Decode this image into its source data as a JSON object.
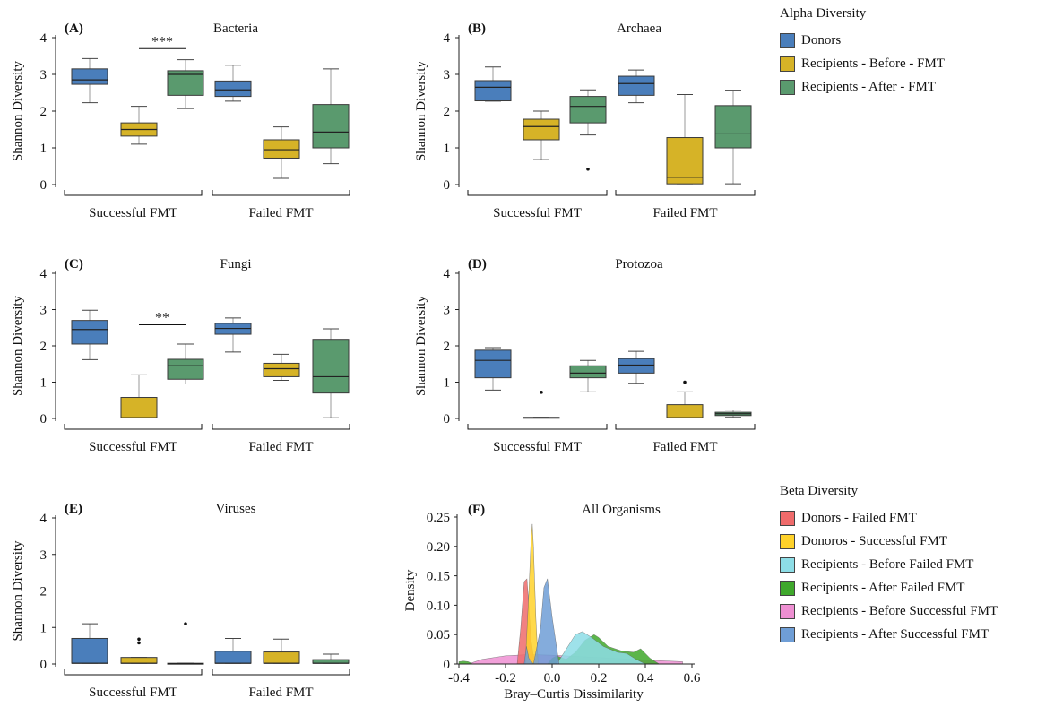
{
  "legend_alpha": {
    "title": "Alpha Diversity",
    "items": [
      {
        "label": "Donors",
        "color": "#4a7ebb"
      },
      {
        "label": "Recipients - Before - FMT",
        "color": "#d6b327"
      },
      {
        "label": "Recipients - After - FMT",
        "color": "#5a9a6e"
      }
    ]
  },
  "legend_beta": {
    "title": "Beta Diversity",
    "items": [
      {
        "label": "Donors - Failed FMT",
        "color": "#ef6b6b"
      },
      {
        "label": "Donoros - Successful FMT",
        "color": "#ffd22a"
      },
      {
        "label": "Recipients - Before Failed FMT",
        "color": "#8ddde6"
      },
      {
        "label": "Recipients - After Failed FMT",
        "color": "#3fa82c"
      },
      {
        "label": "Recipients - Before Successful FMT",
        "color": "#ee8fd2"
      },
      {
        "label": "Recipients - After Successful FMT",
        "color": "#6f9ed6"
      }
    ]
  },
  "chart_data": [
    {
      "type": "box",
      "panel": "(A)",
      "title": "Bacteria",
      "ylabel": "Shannon Diversity",
      "ylim": [
        0,
        4
      ],
      "yticks": [
        "0",
        "1",
        "2",
        "3",
        "4"
      ],
      "groups": [
        "Successful FMT",
        "Failed FMT"
      ],
      "boxes": [
        {
          "group": 0,
          "series": 0,
          "min": 2.23,
          "q1": 2.73,
          "median": 2.85,
          "q3": 3.15,
          "max": 3.43,
          "outliers": []
        },
        {
          "group": 0,
          "series": 1,
          "min": 1.1,
          "q1": 1.32,
          "median": 1.5,
          "q3": 1.68,
          "max": 2.13,
          "outliers": []
        },
        {
          "group": 0,
          "series": 2,
          "min": 2.07,
          "q1": 2.43,
          "median": 3.0,
          "q3": 3.1,
          "max": 3.4,
          "outliers": []
        },
        {
          "group": 1,
          "series": 0,
          "min": 2.27,
          "q1": 2.4,
          "median": 2.58,
          "q3": 2.82,
          "max": 3.25,
          "outliers": []
        },
        {
          "group": 1,
          "series": 1,
          "min": 0.17,
          "q1": 0.72,
          "median": 0.95,
          "q3": 1.22,
          "max": 1.57,
          "outliers": []
        },
        {
          "group": 1,
          "series": 2,
          "min": 0.57,
          "q1": 1.0,
          "median": 1.43,
          "q3": 2.18,
          "max": 3.15,
          "outliers": []
        }
      ],
      "significance": [
        {
          "label": "***",
          "from": 1,
          "to": 2,
          "y": 3.7
        }
      ]
    },
    {
      "type": "box",
      "panel": "(B)",
      "title": "Archaea",
      "ylabel": "Shannon Diversity",
      "ylim": [
        0,
        4
      ],
      "yticks": [
        "0",
        "1",
        "2",
        "3",
        "4"
      ],
      "groups": [
        "Successful FMT",
        "Failed FMT"
      ],
      "boxes": [
        {
          "group": 0,
          "series": 0,
          "min": 2.27,
          "q1": 2.28,
          "median": 2.65,
          "q3": 2.83,
          "max": 3.2,
          "outliers": []
        },
        {
          "group": 0,
          "series": 1,
          "min": 0.68,
          "q1": 1.22,
          "median": 1.58,
          "q3": 1.78,
          "max": 2.0,
          "outliers": []
        },
        {
          "group": 0,
          "series": 2,
          "min": 1.35,
          "q1": 1.68,
          "median": 2.13,
          "q3": 2.4,
          "max": 2.58,
          "outliers": [
            0.42
          ]
        },
        {
          "group": 1,
          "series": 0,
          "min": 2.23,
          "q1": 2.43,
          "median": 2.75,
          "q3": 2.95,
          "max": 3.12,
          "outliers": []
        },
        {
          "group": 1,
          "series": 1,
          "min": 0.02,
          "q1": 0.02,
          "median": 0.2,
          "q3": 1.28,
          "max": 2.45,
          "outliers": []
        },
        {
          "group": 1,
          "series": 2,
          "min": 0.02,
          "q1": 1.0,
          "median": 1.38,
          "q3": 2.15,
          "max": 2.57,
          "outliers": []
        }
      ],
      "significance": []
    },
    {
      "type": "box",
      "panel": "(C)",
      "title": "Fungi",
      "ylabel": "Shannon Diversity",
      "ylim": [
        0,
        4
      ],
      "yticks": [
        "0",
        "1",
        "2",
        "3",
        "4"
      ],
      "groups": [
        "Successful FMT",
        "Failed FMT"
      ],
      "boxes": [
        {
          "group": 0,
          "series": 0,
          "min": 1.62,
          "q1": 2.05,
          "median": 2.45,
          "q3": 2.7,
          "max": 2.98,
          "outliers": []
        },
        {
          "group": 0,
          "series": 1,
          "min": 0.02,
          "q1": 0.02,
          "median": 0.02,
          "q3": 0.58,
          "max": 1.2,
          "outliers": []
        },
        {
          "group": 0,
          "series": 2,
          "min": 0.95,
          "q1": 1.08,
          "median": 1.45,
          "q3": 1.63,
          "max": 2.05,
          "outliers": []
        },
        {
          "group": 1,
          "series": 0,
          "min": 1.83,
          "q1": 2.32,
          "median": 2.48,
          "q3": 2.62,
          "max": 2.77,
          "outliers": []
        },
        {
          "group": 1,
          "series": 1,
          "min": 1.05,
          "q1": 1.15,
          "median": 1.37,
          "q3": 1.52,
          "max": 1.77,
          "outliers": []
        },
        {
          "group": 1,
          "series": 2,
          "min": 0.02,
          "q1": 0.7,
          "median": 1.15,
          "q3": 2.18,
          "max": 2.47,
          "outliers": []
        }
      ],
      "significance": [
        {
          "label": "**",
          "from": 1,
          "to": 2,
          "y": 2.58
        }
      ]
    },
    {
      "type": "box",
      "panel": "(D)",
      "title": "Protozoa",
      "ylabel": "Shannon Diversity",
      "ylim": [
        0,
        4
      ],
      "yticks": [
        "0",
        "1",
        "2",
        "3",
        "4"
      ],
      "groups": [
        "Successful FMT",
        "Failed FMT"
      ],
      "boxes": [
        {
          "group": 0,
          "series": 0,
          "min": 0.78,
          "q1": 1.12,
          "median": 1.6,
          "q3": 1.88,
          "max": 1.95,
          "outliers": []
        },
        {
          "group": 0,
          "series": 1,
          "min": 0.02,
          "q1": 0.02,
          "median": 0.02,
          "q3": 0.03,
          "max": 0.03,
          "outliers": [
            0.72
          ]
        },
        {
          "group": 0,
          "series": 2,
          "min": 0.73,
          "q1": 1.12,
          "median": 1.25,
          "q3": 1.45,
          "max": 1.6,
          "outliers": []
        },
        {
          "group": 1,
          "series": 0,
          "min": 0.97,
          "q1": 1.25,
          "median": 1.47,
          "q3": 1.65,
          "max": 1.85,
          "outliers": []
        },
        {
          "group": 1,
          "series": 1,
          "min": 0.02,
          "q1": 0.02,
          "median": 0.02,
          "q3": 0.38,
          "max": 0.73,
          "outliers": [
            1.0
          ]
        },
        {
          "group": 1,
          "series": 2,
          "min": 0.03,
          "q1": 0.08,
          "median": 0.13,
          "q3": 0.17,
          "max": 0.23,
          "outliers": []
        }
      ],
      "significance": []
    },
    {
      "type": "box",
      "panel": "(E)",
      "title": "Viruses",
      "ylabel": "Shannon Diversity",
      "ylim": [
        0,
        4
      ],
      "yticks": [
        "0",
        "1",
        "2",
        "3",
        "4"
      ],
      "groups": [
        "Successful FMT",
        "Failed FMT"
      ],
      "boxes": [
        {
          "group": 0,
          "series": 0,
          "min": 0.02,
          "q1": 0.02,
          "median": 0.02,
          "q3": 0.7,
          "max": 1.1,
          "outliers": []
        },
        {
          "group": 0,
          "series": 1,
          "min": 0.02,
          "q1": 0.02,
          "median": 0.02,
          "q3": 0.18,
          "max": 0.18,
          "outliers": [
            0.58,
            0.68
          ]
        },
        {
          "group": 0,
          "series": 2,
          "min": 0.01,
          "q1": 0.01,
          "median": 0.01,
          "q3": 0.02,
          "max": 0.02,
          "outliers": [
            1.1
          ]
        },
        {
          "group": 1,
          "series": 0,
          "min": 0.02,
          "q1": 0.02,
          "median": 0.02,
          "q3": 0.35,
          "max": 0.7,
          "outliers": []
        },
        {
          "group": 1,
          "series": 1,
          "min": 0.02,
          "q1": 0.02,
          "median": 0.02,
          "q3": 0.33,
          "max": 0.68,
          "outliers": []
        },
        {
          "group": 1,
          "series": 2,
          "min": 0.02,
          "q1": 0.02,
          "median": 0.02,
          "q3": 0.12,
          "max": 0.27,
          "outliers": []
        }
      ],
      "significance": []
    },
    {
      "type": "area",
      "panel": "(F)",
      "title": "All Organisms",
      "xlabel": "Bray–Curtis Dissimilarity",
      "ylabel": "Density",
      "xlim": [
        -0.4,
        0.6
      ],
      "ylim": [
        0,
        0.25
      ],
      "xticks": [
        "-0.4",
        "-0.2",
        "0.0",
        "0.2",
        "0.4",
        "0.6"
      ],
      "yticks": [
        "0",
        "0.05",
        "0.10",
        "0.15",
        "0.20",
        "0.25"
      ],
      "series": [
        {
          "color": "#ee8fd2",
          "x": [
            -0.36,
            -0.3,
            -0.2,
            -0.1,
            0.0,
            0.1,
            0.2,
            0.3,
            0.4,
            0.5,
            0.56
          ],
          "y": [
            0.0,
            0.008,
            0.014,
            0.016,
            0.015,
            0.013,
            0.011,
            0.009,
            0.007,
            0.005,
            0.004
          ]
        },
        {
          "color": "#3fa82c",
          "x": [
            -0.4,
            -0.38,
            -0.36,
            -0.34,
            -0.02,
            0.0,
            0.02,
            0.06,
            0.1,
            0.14,
            0.18,
            0.2,
            0.24,
            0.3,
            0.35,
            0.38,
            0.42,
            0.46
          ],
          "y": [
            0.004,
            0.005,
            0.004,
            0.0,
            0.0,
            0.01,
            0.014,
            0.008,
            0.02,
            0.04,
            0.05,
            0.045,
            0.03,
            0.022,
            0.02,
            0.026,
            0.01,
            0.0
          ]
        },
        {
          "color": "#8ddde6",
          "x": [
            0.02,
            0.06,
            0.1,
            0.13,
            0.17,
            0.22,
            0.28,
            0.32,
            0.36,
            0.4
          ],
          "y": [
            0.0,
            0.025,
            0.05,
            0.055,
            0.045,
            0.03,
            0.02,
            0.018,
            0.008,
            0.0
          ]
        },
        {
          "color": "#ef6b6b",
          "x": [
            -0.15,
            -0.135,
            -0.12,
            -0.108,
            -0.1,
            -0.09,
            -0.075
          ],
          "y": [
            0.0,
            0.06,
            0.14,
            0.145,
            0.1,
            0.04,
            0.0
          ]
        },
        {
          "color": "#ffd22a",
          "x": [
            -0.115,
            -0.1,
            -0.09,
            -0.085,
            -0.08,
            -0.07,
            -0.06
          ],
          "y": [
            0.0,
            0.12,
            0.215,
            0.238,
            0.2,
            0.08,
            0.0
          ]
        },
        {
          "color": "#6f9ed6",
          "x": [
            -0.12,
            -0.11,
            -0.1,
            -0.08,
            -0.05,
            -0.035,
            -0.02,
            0.0,
            0.03
          ],
          "y": [
            0.0,
            0.03,
            0.01,
            0.0,
            0.06,
            0.13,
            0.145,
            0.08,
            0.0
          ]
        }
      ]
    }
  ]
}
